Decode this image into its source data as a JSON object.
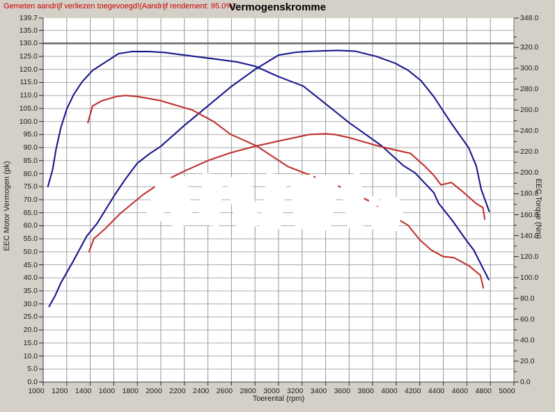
{
  "header": {
    "note": "Gemeten aandrijf verliezen toegevoegd!(Aandrijf rendement: 95.0%)",
    "note_color": "#cc0000",
    "title": "Vermogenskromme"
  },
  "colors": {
    "background": "#d4d0c8",
    "plot_background": "#ffffff",
    "grid_vertical": "#979797",
    "grid_horizontal": "#ababab",
    "emphasis_line": "#6e6e6e",
    "spine": "#3a3a3a",
    "tuned_curve": "#16168c",
    "stock_curve": "#c03030"
  },
  "chart_data": {
    "type": "line",
    "title": "Vermogenskromme",
    "xlabel": "Toerental (rpm)",
    "ylabel_left": "EEC Motor Vermogen (pk)",
    "ylabel_right": "EEC Torque (Nm)",
    "x_range": [
      1000,
      5000
    ],
    "y_left_range": [
      0,
      139.7
    ],
    "y_right_range": [
      0,
      348.0
    ],
    "grid": {
      "x_step_rpm": 200,
      "y_left_step_pk": 5,
      "emphasis_at_pk": 130.0
    },
    "x_tick_labels": [
      "1000",
      "1200",
      "1400",
      "1600",
      "1800",
      "2000",
      "2200",
      "2400",
      "2600",
      "2800",
      "3000",
      "3200",
      "3400",
      "3600",
      "3800",
      "4000",
      "4200",
      "4400",
      "4600",
      "4800",
      "5000"
    ],
    "y_left_tick_labels": [
      "139.7",
      "135.0",
      "130.0",
      "125.0",
      "120.0",
      "115.0",
      "110.0",
      "105.0",
      "100.0",
      "95.0",
      "90.0",
      "85.0",
      "80.0",
      "75.0",
      "70.0",
      "65.0",
      "60.0",
      "55.0",
      "50.0",
      "45.0",
      "40.0",
      "35.0",
      "30.0",
      "25.0",
      "20.0",
      "15.0",
      "10.0",
      "5.0",
      "0.0"
    ],
    "y_right_tick_labels": [
      "348.0",
      "320.0",
      "300.0",
      "280.0",
      "260.0",
      "240.0",
      "220.0",
      "200.0",
      "180.0",
      "160.0",
      "140.0",
      "120.0",
      "100.0",
      "80.0",
      "60.0",
      "40.0",
      "20.0",
      "0.0"
    ],
    "y_right_minor_tick_step": 10,
    "legend": "none",
    "series": [
      {
        "name": "tuned-torque-Nm",
        "color": "#16168c",
        "axis": "right",
        "points": [
          [
            1040,
            187
          ],
          [
            1080,
            203
          ],
          [
            1110,
            223
          ],
          [
            1150,
            243
          ],
          [
            1200,
            261
          ],
          [
            1260,
            275
          ],
          [
            1330,
            287
          ],
          [
            1420,
            298
          ],
          [
            1530,
            306
          ],
          [
            1640,
            314
          ],
          [
            1750,
            316
          ],
          [
            1900,
            316
          ],
          [
            2040,
            315
          ],
          [
            2170,
            313
          ],
          [
            2450,
            309
          ],
          [
            2650,
            306
          ],
          [
            2800,
            302
          ],
          [
            3000,
            292
          ],
          [
            3210,
            283
          ],
          [
            3400,
            266
          ],
          [
            3600,
            248
          ],
          [
            3875,
            226
          ],
          [
            4060,
            207
          ],
          [
            4160,
            200
          ],
          [
            4320,
            181
          ],
          [
            4360,
            171
          ],
          [
            4480,
            154
          ],
          [
            4580,
            138
          ],
          [
            4660,
            126
          ],
          [
            4736,
            109
          ],
          [
            4786,
            98
          ]
        ]
      },
      {
        "name": "tuned-power-pk",
        "color": "#16168c",
        "axis": "left",
        "points": [
          [
            1050,
            29
          ],
          [
            1100,
            33
          ],
          [
            1150,
            38
          ],
          [
            1250,
            46
          ],
          [
            1370,
            56
          ],
          [
            1460,
            61
          ],
          [
            1610,
            72
          ],
          [
            1700,
            78
          ],
          [
            1800,
            84
          ],
          [
            1900,
            87.5
          ],
          [
            2000,
            90.5
          ],
          [
            2200,
            98.5
          ],
          [
            2400,
            106
          ],
          [
            2600,
            113.5
          ],
          [
            2800,
            120
          ],
          [
            3000,
            125.5
          ],
          [
            3150,
            126.6
          ],
          [
            3300,
            127
          ],
          [
            3500,
            127.3
          ],
          [
            3650,
            127
          ],
          [
            3830,
            125
          ],
          [
            3990,
            122.4
          ],
          [
            4100,
            119.7
          ],
          [
            4210,
            115.7
          ],
          [
            4320,
            109.5
          ],
          [
            4465,
            99.5
          ],
          [
            4615,
            90
          ],
          [
            4680,
            83
          ],
          [
            4722,
            74
          ],
          [
            4790,
            65.5
          ]
        ]
      },
      {
        "name": "stock-torque-Nm",
        "color": "#c03030",
        "axis": "right",
        "points": [
          [
            1380,
            248
          ],
          [
            1420,
            264
          ],
          [
            1500,
            269
          ],
          [
            1620,
            273
          ],
          [
            1700,
            274
          ],
          [
            1800,
            273
          ],
          [
            2000,
            269
          ],
          [
            2270,
            260
          ],
          [
            2450,
            249
          ],
          [
            2590,
            237
          ],
          [
            2810,
            226
          ],
          [
            3080,
            206
          ],
          [
            3240,
            199
          ],
          [
            3540,
            186
          ],
          [
            3755,
            174
          ],
          [
            3980,
            158
          ],
          [
            4100,
            150
          ],
          [
            4200,
            136
          ],
          [
            4300,
            126
          ],
          [
            4400,
            120
          ],
          [
            4490,
            119
          ],
          [
            4620,
            111
          ],
          [
            4716,
            102
          ],
          [
            4740,
            90
          ]
        ]
      },
      {
        "name": "stock-power-pk",
        "color": "#c03030",
        "axis": "left",
        "points": [
          [
            1390,
            50
          ],
          [
            1430,
            55
          ],
          [
            1530,
            59
          ],
          [
            1650,
            64.5
          ],
          [
            1850,
            72
          ],
          [
            2000,
            76.5
          ],
          [
            2200,
            81
          ],
          [
            2400,
            85
          ],
          [
            2590,
            88
          ],
          [
            2810,
            90.6
          ],
          [
            3000,
            92.5
          ],
          [
            3260,
            95
          ],
          [
            3400,
            95.3
          ],
          [
            3480,
            95
          ],
          [
            3600,
            93.8
          ],
          [
            3815,
            91
          ],
          [
            3970,
            89.3
          ],
          [
            4120,
            87.8
          ],
          [
            4240,
            83
          ],
          [
            4320,
            79.3
          ],
          [
            4380,
            75.7
          ],
          [
            4470,
            76.6
          ],
          [
            4580,
            72.5
          ],
          [
            4680,
            68.5
          ],
          [
            4736,
            67
          ],
          [
            4752,
            62.5
          ]
        ]
      }
    ]
  }
}
